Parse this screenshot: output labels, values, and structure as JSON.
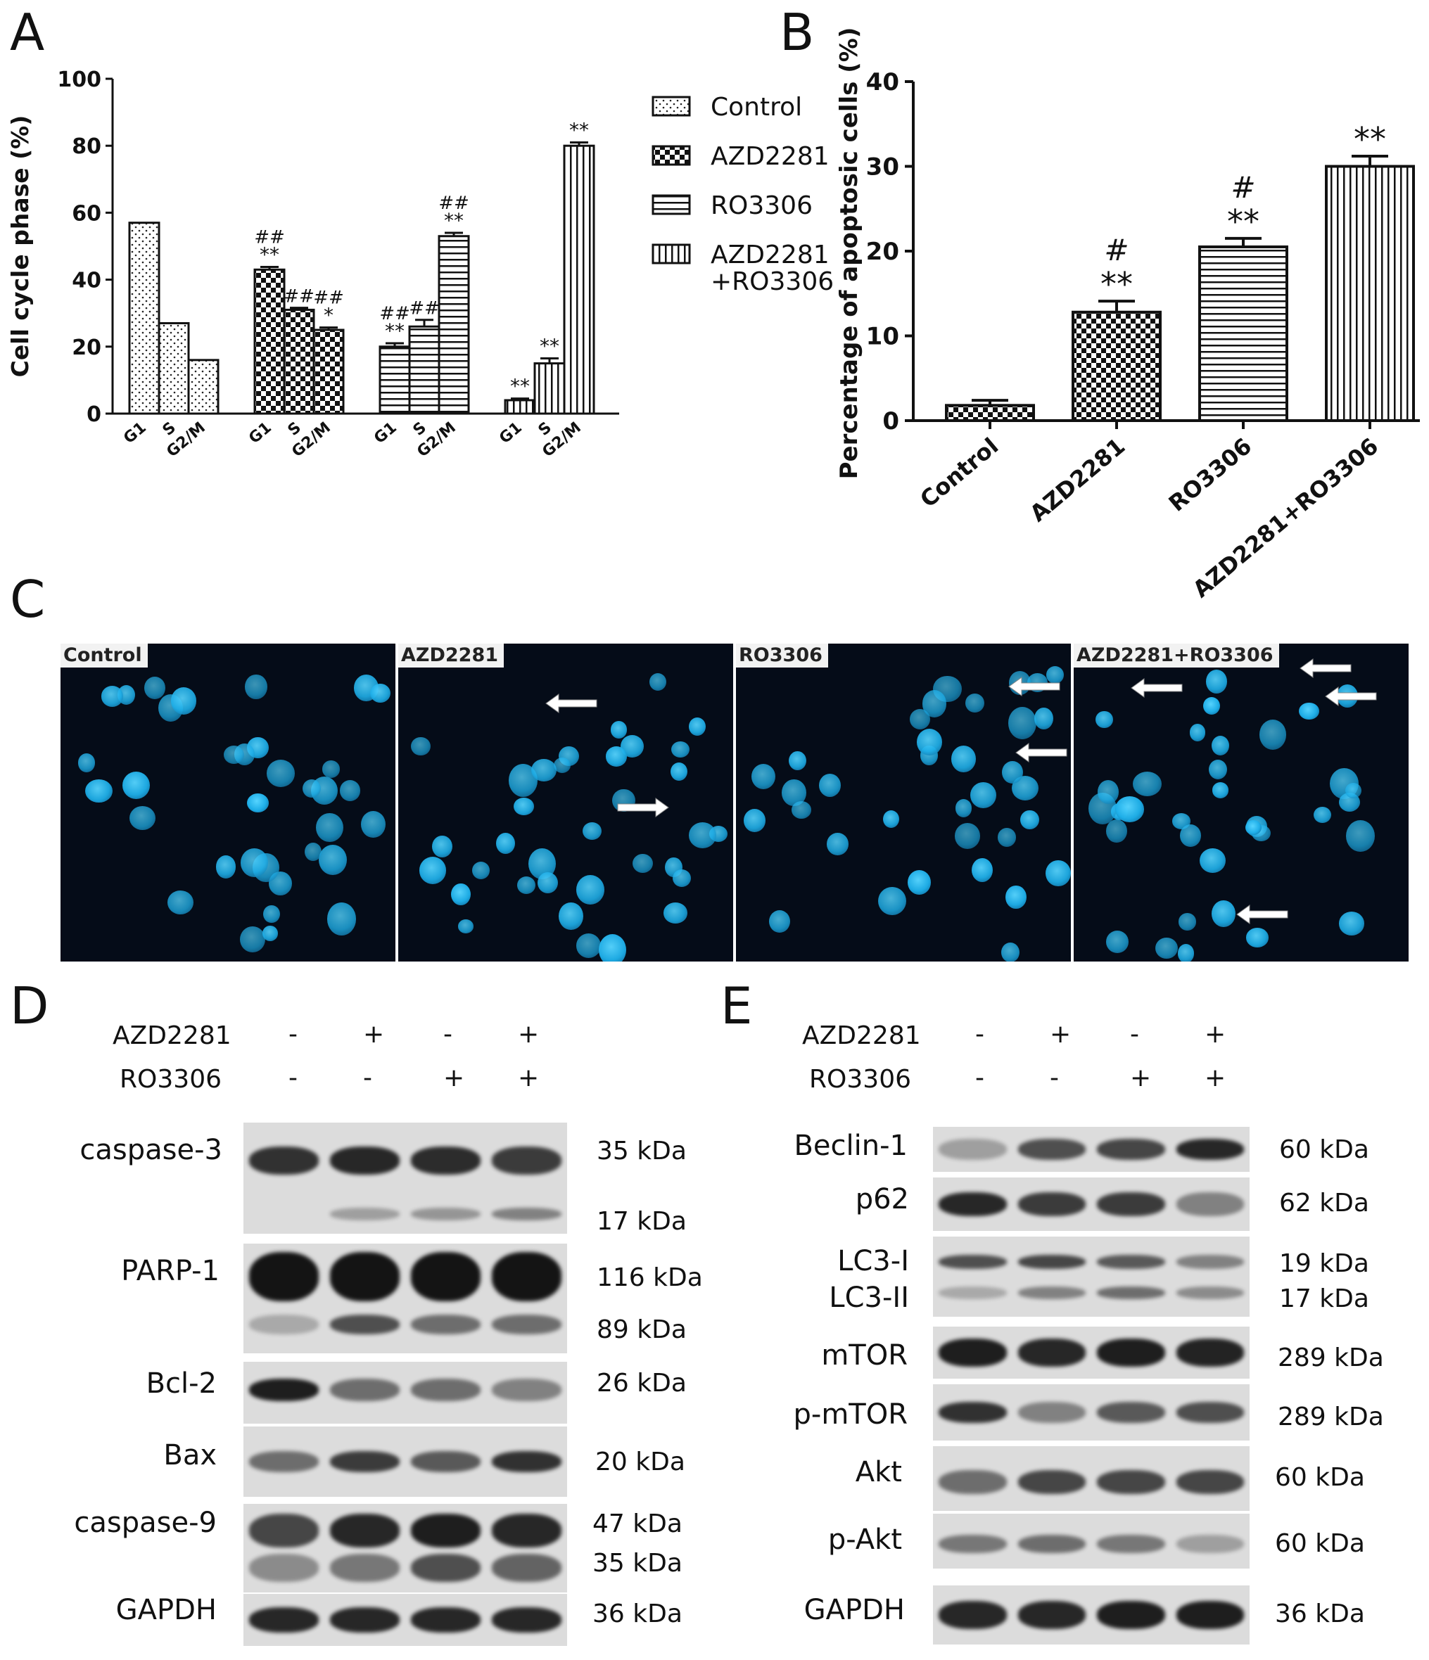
{
  "panel_labels": [
    "A",
    "B",
    "C",
    "D",
    "E"
  ],
  "chart_data": [
    {
      "type": "bar",
      "panel": "A",
      "ylabel": "Cell cycle phase (%)",
      "ylim": [
        0,
        100
      ],
      "yticks": [
        "0",
        "20",
        "40",
        "60",
        "80",
        "100"
      ],
      "groups": [
        {
          "name": "Control",
          "categories": [
            "G1",
            "S",
            "G2/M"
          ],
          "values": [
            57,
            27,
            16
          ],
          "errors": [
            0,
            0,
            0
          ],
          "annotations": [
            [
              "",
              ""
            ],
            [
              "",
              ""
            ],
            [
              "",
              ""
            ]
          ],
          "pattern": "dots"
        },
        {
          "name": "AZD2281",
          "categories": [
            "G1",
            "S",
            "G2/M"
          ],
          "values": [
            43,
            31,
            25
          ],
          "errors": [
            0.8,
            0.6,
            0.7
          ],
          "annotations": [
            [
              "##",
              "**"
            ],
            [
              "##",
              ""
            ],
            [
              "##",
              "*"
            ]
          ],
          "pattern": "checker"
        },
        {
          "name": "RO3306",
          "categories": [
            "G1",
            "S",
            "G2/M"
          ],
          "values": [
            20,
            26,
            53
          ],
          "errors": [
            1,
            2,
            1
          ],
          "annotations": [
            [
              "##",
              "**"
            ],
            [
              "##",
              ""
            ],
            [
              "##",
              "**"
            ]
          ],
          "pattern": "hlines"
        },
        {
          "name": "AZD2281\n+RO3306",
          "categories": [
            "G1",
            "S",
            "G2/M"
          ],
          "values": [
            4,
            15,
            80
          ],
          "errors": [
            0.5,
            1.5,
            1
          ],
          "annotations": [
            [
              "",
              "**"
            ],
            [
              "",
              "**"
            ],
            [
              "",
              "**"
            ]
          ],
          "pattern": "vlines"
        }
      ],
      "legend": [
        "Control",
        "AZD2281",
        "RO3306",
        "AZD2281",
        "+RO3306"
      ],
      "legend_position": "right"
    },
    {
      "type": "bar",
      "panel": "B",
      "ylabel": "Percentage of apoptosic cells (%)",
      "ylim": [
        0,
        40
      ],
      "yticks": [
        "0",
        "10",
        "20",
        "30",
        "40"
      ],
      "categories": [
        "Control",
        "AZD2281",
        "RO3306",
        "AZD2281+RO3306"
      ],
      "values": [
        1.8,
        12.8,
        20.5,
        30
      ],
      "errors": [
        0.6,
        1.3,
        1,
        1.2
      ],
      "annotations": [
        [
          "",
          ""
        ],
        [
          "#",
          "**"
        ],
        [
          "#",
          "**"
        ],
        [
          "",
          "**"
        ]
      ],
      "patterns": [
        "checker",
        "checker",
        "hlines",
        "vlines"
      ]
    }
  ],
  "microscopy": {
    "panels": [
      {
        "label": "Control"
      },
      {
        "label": "AZD2281"
      },
      {
        "label": "RO3306"
      },
      {
        "label": "AZD2281+RO3306"
      }
    ]
  },
  "western_D": {
    "treatments": [
      {
        "name": "AZD2281",
        "signs": [
          "-",
          "+",
          "-",
          "+"
        ]
      },
      {
        "name": "RO3306",
        "signs": [
          "-",
          "-",
          "+",
          "+"
        ]
      }
    ],
    "proteins": [
      {
        "name": "caspase-3",
        "kda": [
          "35 kDa",
          "17 kDa"
        ]
      },
      {
        "name": "PARP-1",
        "kda": [
          "116 kDa",
          "89 kDa"
        ]
      },
      {
        "name": "Bcl-2",
        "kda": [
          "26 kDa"
        ]
      },
      {
        "name": "Bax",
        "kda": [
          "20 kDa"
        ]
      },
      {
        "name": "caspase-9",
        "kda": [
          "47 kDa",
          "35 kDa"
        ]
      },
      {
        "name": "GAPDH",
        "kda": [
          "36 kDa"
        ]
      }
    ]
  },
  "western_E": {
    "treatments": [
      {
        "name": "AZD2281",
        "signs": [
          "-",
          "+",
          "-",
          "+"
        ]
      },
      {
        "name": "RO3306",
        "signs": [
          "-",
          "-",
          "+",
          "+"
        ]
      }
    ],
    "proteins": [
      {
        "name": "Beclin-1",
        "kda": [
          "60 kDa"
        ]
      },
      {
        "name": "p62",
        "kda": [
          "62 kDa"
        ]
      },
      {
        "name": "LC3-I",
        "kda": [
          "19 kDa"
        ]
      },
      {
        "name": "LC3-II",
        "kda": [
          "17 kDa"
        ]
      },
      {
        "name": "mTOR",
        "kda": [
          "289 kDa"
        ]
      },
      {
        "name": "p-mTOR",
        "kda": [
          "289 kDa"
        ]
      },
      {
        "name": "Akt",
        "kda": [
          "60 kDa"
        ]
      },
      {
        "name": "p-Akt",
        "kda": [
          "60 kDa"
        ]
      },
      {
        "name": "GAPDH",
        "kda": [
          "36 kDa"
        ]
      }
    ]
  }
}
